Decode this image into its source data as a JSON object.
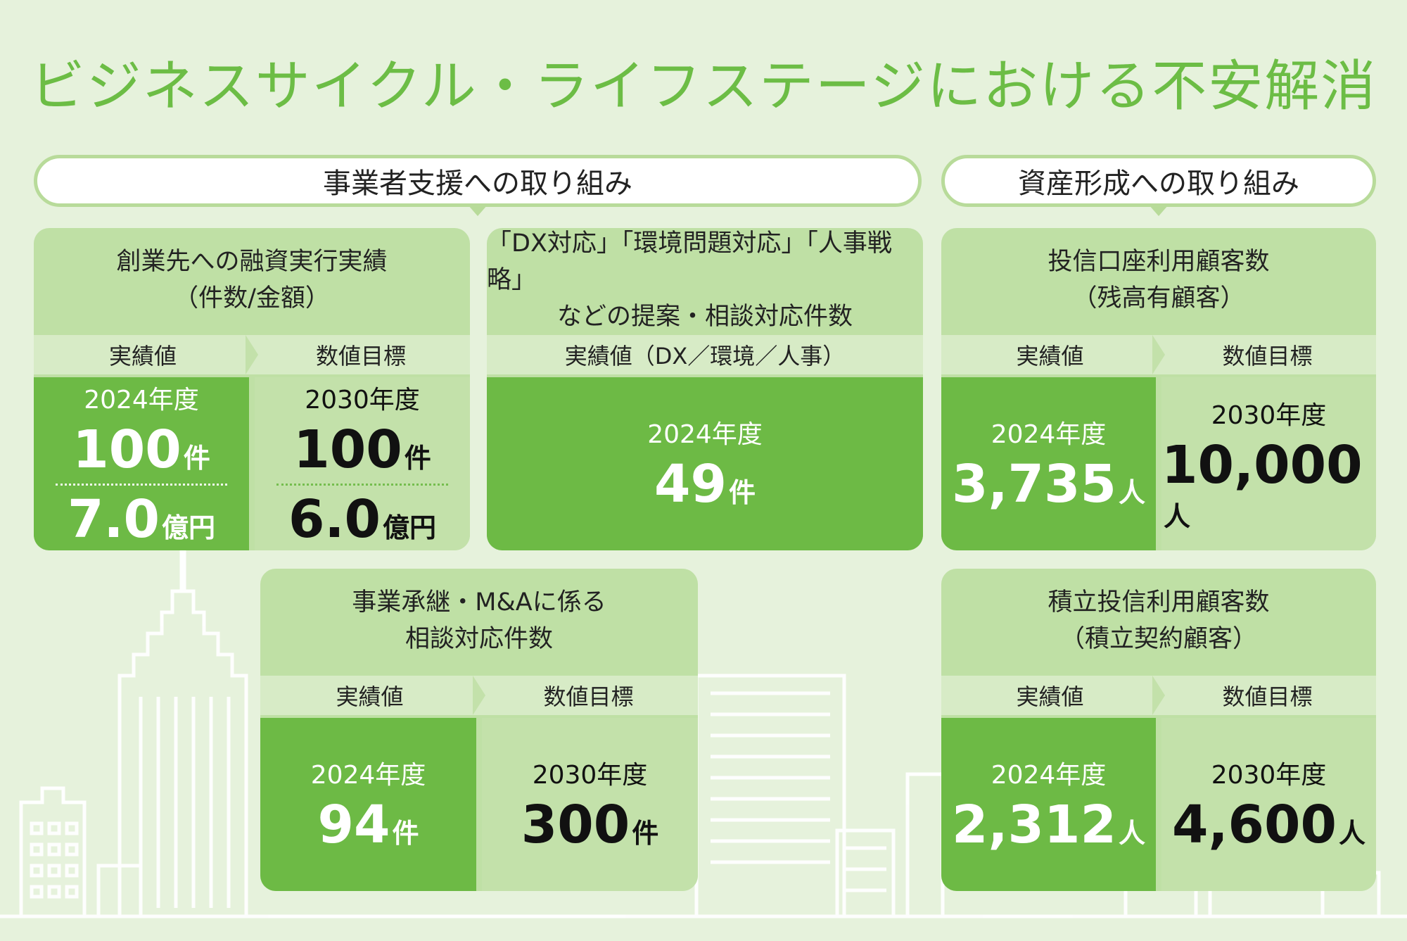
{
  "title": "ビジネスサイクル・ライフステージにおける不安解消",
  "sections": {
    "business": "事業者支援への取り組み",
    "assets": "資産形成への取り組み"
  },
  "cards": {
    "startup": {
      "title_line1": "創業先への融資実行実績",
      "title_line2": "（件数/金額）",
      "actual_label": "実績値",
      "target_label": "数値目標",
      "actual_year": "2024年度",
      "actual_count": "100",
      "actual_count_unit": "件",
      "actual_amount": "7.0",
      "actual_amount_unit": "億円",
      "target_year": "2030年度",
      "target_count": "100",
      "target_count_unit": "件",
      "target_amount": "6.0",
      "target_amount_unit": "億円"
    },
    "dx": {
      "title_line1": "「DX対応」「環境問題対応」「人事戦略」",
      "title_line2": "などの提案・相談対応件数",
      "actual_label": "実績値（DX／環境／人事）",
      "actual_year": "2024年度",
      "actual_value": "49",
      "actual_unit": "件"
    },
    "trust_accounts": {
      "title_line1": "投信口座利用顧客数",
      "title_line2": "（残高有顧客）",
      "actual_label": "実績値",
      "target_label": "数値目標",
      "actual_year": "2024年度",
      "actual_value": "3,735",
      "actual_unit": "人",
      "target_year": "2030年度",
      "target_value": "10,000",
      "target_unit": "人"
    },
    "succession": {
      "title_line1": "事業承継・M&Aに係る",
      "title_line2": "相談対応件数",
      "actual_label": "実績値",
      "target_label": "数値目標",
      "actual_year": "2024年度",
      "actual_value": "94",
      "actual_unit": "件",
      "target_year": "2030年度",
      "target_value": "300",
      "target_unit": "件"
    },
    "installment": {
      "title_line1": "積立投信利用顧客数",
      "title_line2": "（積立契約顧客）",
      "actual_label": "実績値",
      "target_label": "数値目標",
      "actual_year": "2024年度",
      "actual_value": "2,312",
      "actual_unit": "人",
      "target_year": "2030年度",
      "target_value": "4,600",
      "target_unit": "人"
    }
  },
  "colors": {
    "title": "#6cbd45",
    "actual_bg": "#6dba45",
    "target_bg": "#c3e1aa",
    "card_bg": "#bfe0a5",
    "background": "#e6f2dc"
  }
}
